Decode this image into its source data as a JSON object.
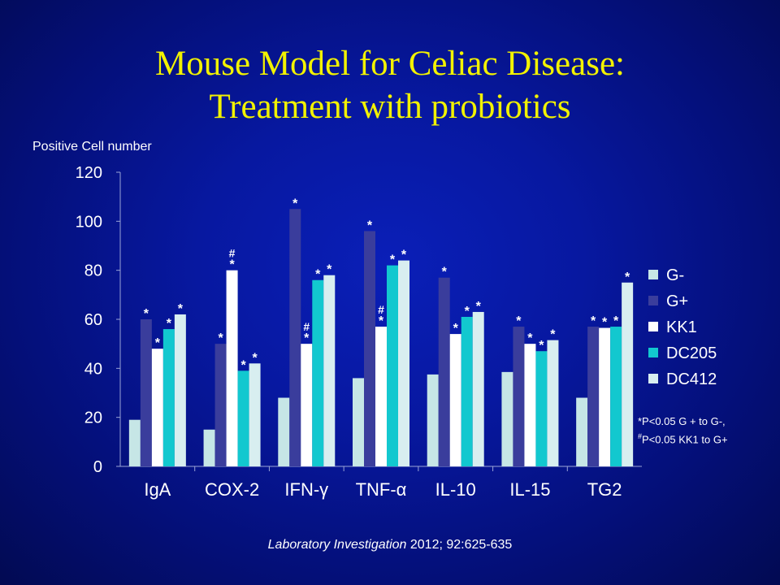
{
  "slide": {
    "title_line1": "Mouse Model for Celiac Disease:",
    "title_line2": "Treatment with probiotics",
    "footnote_line1": "*P<0.05 G + to G-,",
    "footnote_line2_mark": "#",
    "footnote_line2_text": "P<0.05 KK1 to G+",
    "citation_journal": "Laboratory Investigation",
    "citation_rest": " 2012; 92:625-635"
  },
  "chart_data": {
    "type": "bar",
    "title": "",
    "xlabel": "",
    "ylabel": "Positive Cell number",
    "ylim": [
      0,
      120
    ],
    "yticks": [
      0,
      20,
      40,
      60,
      80,
      100,
      120
    ],
    "grid": false,
    "legend_position": "right",
    "categories": [
      "IgA",
      "COX-2",
      "IFN-γ",
      "TNF-α",
      "IL-10",
      "IL-15",
      "TG2"
    ],
    "series": [
      {
        "name": "G-",
        "color": "#c6e6e6",
        "values": [
          19,
          15,
          28,
          36,
          37.5,
          38.5,
          28
        ],
        "marks": [
          "",
          "",
          "",
          "",
          "",
          "",
          ""
        ]
      },
      {
        "name": "G+",
        "color": "#3a3d9c",
        "values": [
          60,
          50,
          105,
          96,
          77,
          57,
          57
        ],
        "marks": [
          "*",
          "*",
          "*",
          "*",
          "*",
          "*",
          "*"
        ]
      },
      {
        "name": "KK1",
        "color": "#ffffff",
        "values": [
          48,
          80,
          50,
          57,
          54,
          50,
          56.5
        ],
        "marks": [
          "*",
          "#*",
          "#*",
          "#*",
          "*",
          "*",
          "*"
        ]
      },
      {
        "name": "DC205",
        "color": "#12c8cf",
        "values": [
          56,
          39,
          76,
          82,
          61,
          47,
          57
        ],
        "marks": [
          "*",
          "*",
          "*",
          "*",
          "*",
          "*",
          "*"
        ]
      },
      {
        "name": "DC412",
        "color": "#d8eef0",
        "values": [
          62,
          42,
          78,
          84,
          63,
          51.5,
          75
        ],
        "marks": [
          "*",
          "*",
          "*",
          "*",
          "*",
          "*",
          "*"
        ]
      }
    ]
  }
}
